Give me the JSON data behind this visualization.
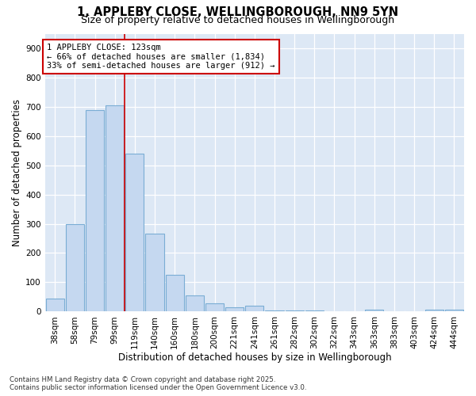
{
  "title1": "1, APPLEBY CLOSE, WELLINGBOROUGH, NN9 5YN",
  "title2": "Size of property relative to detached houses in Wellingborough",
  "xlabel": "Distribution of detached houses by size in Wellingborough",
  "ylabel": "Number of detached properties",
  "categories": [
    "38sqm",
    "58sqm",
    "79sqm",
    "99sqm",
    "119sqm",
    "140sqm",
    "160sqm",
    "180sqm",
    "200sqm",
    "221sqm",
    "241sqm",
    "261sqm",
    "282sqm",
    "302sqm",
    "322sqm",
    "343sqm",
    "363sqm",
    "383sqm",
    "403sqm",
    "424sqm",
    "444sqm"
  ],
  "values": [
    45,
    300,
    690,
    705,
    540,
    265,
    125,
    55,
    27,
    15,
    20,
    4,
    3,
    3,
    2,
    2,
    7,
    1,
    1,
    7,
    7
  ],
  "bar_color": "#c5d8f0",
  "bar_edgecolor": "#7aadd4",
  "bar_linewidth": 0.8,
  "vline_x_index": 3,
  "vline_color": "#cc0000",
  "vline_linewidth": 1.2,
  "annotation_text": "1 APPLEBY CLOSE: 123sqm\n← 66% of detached houses are smaller (1,834)\n33% of semi-detached houses are larger (912) →",
  "annotation_fontsize": 7.5,
  "annotation_box_color": "#cc0000",
  "background_color": "#dde8f5",
  "grid_color": "#ffffff",
  "ylim": [
    0,
    950
  ],
  "yticks": [
    0,
    100,
    200,
    300,
    400,
    500,
    600,
    700,
    800,
    900
  ],
  "title1_fontsize": 10.5,
  "title2_fontsize": 9,
  "xlabel_fontsize": 8.5,
  "ylabel_fontsize": 8.5,
  "tick_fontsize": 7.5,
  "footer_line1": "Contains HM Land Registry data © Crown copyright and database right 2025.",
  "footer_line2": "Contains public sector information licensed under the Open Government Licence v3.0."
}
